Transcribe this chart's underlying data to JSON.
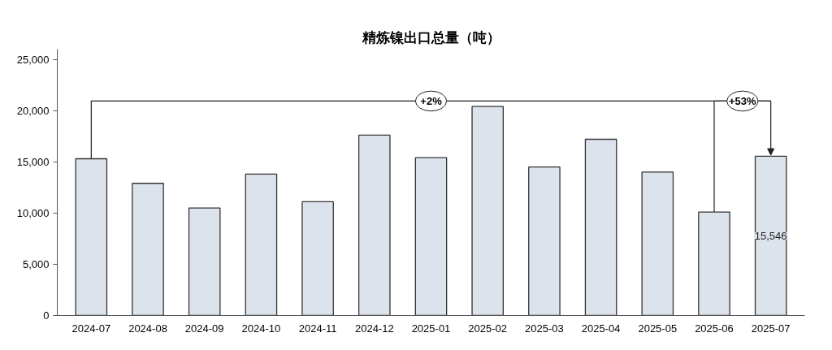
{
  "chart_data": {
    "type": "bar",
    "title": "精炼镍出口总量（吨）",
    "categories": [
      "2024-07",
      "2024-08",
      "2024-09",
      "2024-10",
      "2024-11",
      "2024-12",
      "2025-01",
      "2025-02",
      "2025-03",
      "2025-04",
      "2025-05",
      "2025-06",
      "2025-07"
    ],
    "values": [
      15300,
      12900,
      10500,
      13800,
      11100,
      17600,
      15400,
      20400,
      14500,
      17200,
      14000,
      10100,
      15546
    ],
    "value_labels": [
      null,
      null,
      null,
      null,
      null,
      null,
      null,
      null,
      null,
      null,
      null,
      null,
      "15,546"
    ],
    "color": "#dce3ed",
    "ylim": [
      0,
      26000
    ],
    "yticks": [
      0,
      {
        "value": 5000,
        "label": "5,000"
      },
      {
        "value": 10000,
        "label": "10,000"
      },
      {
        "value": 15000,
        "label": "15,000"
      },
      {
        "value": 20000,
        "label": "20,000"
      },
      {
        "value": 25000,
        "label": "25,000"
      }
    ],
    "grid": false,
    "annotations": [
      {
        "text": "+2%",
        "x": "2024-07",
        "y": 15300
      },
      {
        "text": "+53%",
        "x": "2025-06",
        "y": 10100
      }
    ]
  }
}
